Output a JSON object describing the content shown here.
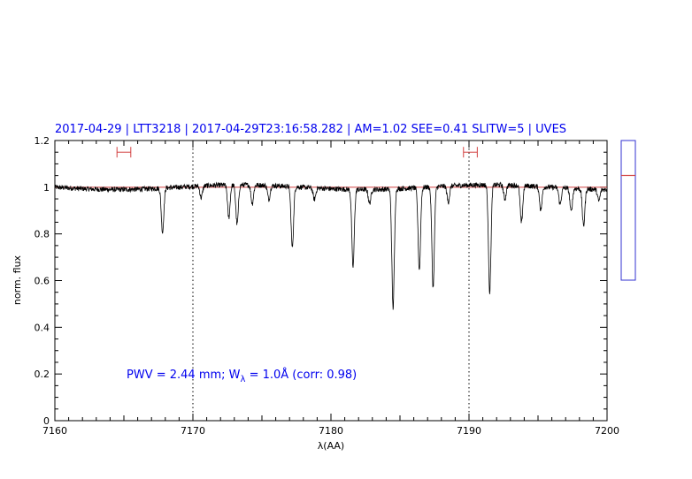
{
  "chart_data": {
    "type": "line",
    "title": "2017-04-29 | LTT3218 | 2017-04-29T23:16:58.282 | AM=1.02 SEE=0.41 SLITW=5 | UVES",
    "xlabel": "λ(AA)",
    "ylabel": "norm. flux",
    "xlim": [
      7160,
      7200
    ],
    "ylim": [
      0,
      1.2
    ],
    "xticks": [
      7160,
      7170,
      7180,
      7190,
      7200
    ],
    "xtick_labels": [
      "7160",
      "7170",
      "7180",
      "7190",
      "7200"
    ],
    "yticks": [
      0,
      0.2,
      0.4,
      0.6,
      0.8,
      1,
      1.2
    ],
    "ytick_labels": [
      "0",
      "0.2",
      "0.4",
      "0.6",
      "0.8",
      "1",
      "1.2"
    ],
    "grid": false,
    "reference_line_y": 1.0,
    "vertical_markers_x": [
      7170,
      7190
    ],
    "continuum_windows": [
      [
        7164.5,
        7165.5
      ],
      [
        7189.6,
        7190.6
      ]
    ],
    "continuum_marker_y": 1.15,
    "annotation": {
      "prefix": "PWV = 2.44 mm; W",
      "subscript": "λ",
      "suffix": " = 1.0Å (corr: 0.98)"
    },
    "absorption_lines": [
      {
        "x": 7167.8,
        "depth": 0.19
      },
      {
        "x": 7170.6,
        "depth": 0.05
      },
      {
        "x": 7172.6,
        "depth": 0.14
      },
      {
        "x": 7173.2,
        "depth": 0.17
      },
      {
        "x": 7174.3,
        "depth": 0.08
      },
      {
        "x": 7175.5,
        "depth": 0.06
      },
      {
        "x": 7177.2,
        "depth": 0.26
      },
      {
        "x": 7178.8,
        "depth": 0.05
      },
      {
        "x": 7181.6,
        "depth": 0.33
      },
      {
        "x": 7182.8,
        "depth": 0.06
      },
      {
        "x": 7184.5,
        "depth": 0.51
      },
      {
        "x": 7186.4,
        "depth": 0.35
      },
      {
        "x": 7187.4,
        "depth": 0.43
      },
      {
        "x": 7188.5,
        "depth": 0.07
      },
      {
        "x": 7191.5,
        "depth": 0.46
      },
      {
        "x": 7192.6,
        "depth": 0.06
      },
      {
        "x": 7193.8,
        "depth": 0.16
      },
      {
        "x": 7195.2,
        "depth": 0.1
      },
      {
        "x": 7196.6,
        "depth": 0.07
      },
      {
        "x": 7197.4,
        "depth": 0.1
      },
      {
        "x": 7198.3,
        "depth": 0.16
      },
      {
        "x": 7199.4,
        "depth": 0.05
      }
    ],
    "side_indicator": {
      "ylim": [
        0.6,
        1.2
      ],
      "value": 1.05
    },
    "colors": {
      "spectrum": "#000000",
      "reference_line": "#d24040",
      "markers": "#d24040",
      "text": "#0000ee",
      "axes": "#000000",
      "indicator_box": "#3030d0"
    }
  }
}
